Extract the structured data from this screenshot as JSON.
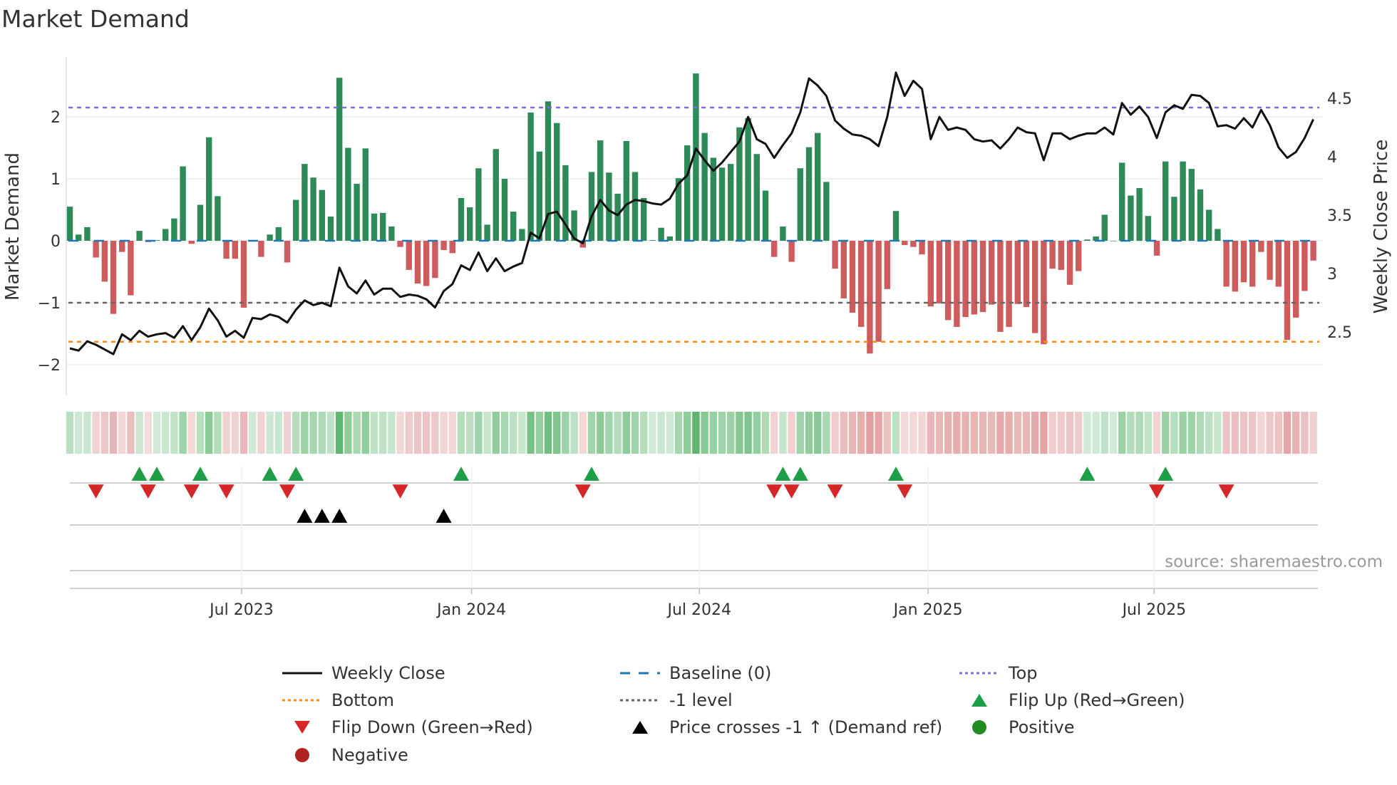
{
  "chart_data": {
    "type": "bar",
    "title": "Market Demand",
    "ylabel": "Market Demand",
    "y2label": "Weekly Close Price",
    "ylim": [
      -2.2,
      2.9
    ],
    "y2lim": [
      2.22,
      4.89
    ],
    "yticks": [
      {
        "v": 2,
        "label": "2"
      },
      {
        "v": 1,
        "label": "1"
      },
      {
        "v": 0,
        "label": "0"
      },
      {
        "v": -1,
        "label": "−1"
      },
      {
        "v": -2,
        "label": "−2"
      }
    ],
    "y2ticks": [
      {
        "v": 4.5,
        "label": "4.5"
      },
      {
        "v": 4,
        "label": "4"
      },
      {
        "v": 3.5,
        "label": "3.5"
      },
      {
        "v": 3,
        "label": "3"
      },
      {
        "v": 2.5,
        "label": "2.5"
      }
    ],
    "x_ticks": [
      {
        "label": "Jul 2023",
        "week": 19.75
      },
      {
        "label": "Jan 2024",
        "week": 46.2
      },
      {
        "label": "Jul 2024",
        "week": 72.4
      },
      {
        "label": "Jan 2025",
        "week": 98.7
      },
      {
        "label": "Jul 2025",
        "week": 124.7
      }
    ],
    "levels": {
      "top": 2.15,
      "baseline": 0,
      "minus_one": -1,
      "bottom": -1.63
    },
    "demand": [
      0.55,
      0.1,
      0.22,
      -0.27,
      -0.66,
      -1.18,
      -0.18,
      -0.88,
      0.16,
      -0.02,
      0.01,
      0.19,
      0.36,
      1.2,
      -0.05,
      0.58,
      1.67,
      0.72,
      -0.29,
      -0.29,
      -1.08,
      0,
      -0.26,
      0.1,
      0.22,
      -0.35,
      0.66,
      1.24,
      1.02,
      0.82,
      0.39,
      2.63,
      1.5,
      0.92,
      1.49,
      0.44,
      0.45,
      0.23,
      -0.1,
      -0.47,
      -0.69,
      -0.73,
      -0.6,
      -0.15,
      -0.2,
      0.69,
      0.54,
      1.17,
      0.26,
      1.48,
      1.0,
      0.47,
      0.19,
      2.07,
      1.44,
      2.25,
      1.9,
      1.22,
      0.49,
      -0.11,
      1.11,
      1.62,
      1.1,
      0.76,
      1.61,
      1.11,
      0.69,
      0.01,
      0.21,
      0.07,
      1.01,
      1.54,
      2.7,
      1.74,
      1.34,
      1.18,
      1.24,
      1.83,
      1.98,
      1.4,
      0.81,
      -0.26,
      0.23,
      -0.34,
      1.17,
      1.51,
      1.74,
      0.95,
      -0.45,
      -0.93,
      -1.16,
      -1.39,
      -1.82,
      -1.63,
      -0.78,
      0.48,
      -0.07,
      -0.1,
      -0.22,
      -1.06,
      -1.01,
      -1.28,
      -1.39,
      -1.23,
      -1.19,
      -1.15,
      -1.03,
      -1.47,
      -1.39,
      -1.02,
      -1.07,
      -1.49,
      -1.67,
      -0.45,
      -0.47,
      -0.71,
      -0.49,
      0.02,
      0.07,
      0.42,
      0,
      1.26,
      0.73,
      0.85,
      0.4,
      -0.24,
      1.28,
      0.71,
      1.28,
      1.16,
      0.83,
      0.5,
      0.19,
      -0.74,
      -0.82,
      -0.67,
      -0.74,
      -0.18,
      -0.63,
      -0.74,
      -1.6,
      -1.24,
      -0.81,
      -0.32
    ],
    "weekly_close": [
      2.36,
      2.34,
      2.42,
      2.39,
      2.35,
      2.31,
      2.48,
      2.43,
      2.51,
      2.46,
      2.48,
      2.49,
      2.45,
      2.55,
      2.43,
      2.54,
      2.7,
      2.6,
      2.46,
      2.51,
      2.45,
      2.62,
      2.61,
      2.65,
      2.63,
      2.58,
      2.69,
      2.77,
      2.73,
      2.75,
      2.72,
      3.05,
      2.89,
      2.83,
      2.94,
      2.82,
      2.87,
      2.87,
      2.8,
      2.82,
      2.81,
      2.78,
      2.71,
      2.85,
      2.91,
      3.07,
      3.03,
      3.18,
      3.02,
      3.13,
      3.02,
      3.06,
      3.09,
      3.35,
      3.3,
      3.51,
      3.53,
      3.42,
      3.3,
      3.26,
      3.49,
      3.63,
      3.54,
      3.5,
      3.59,
      3.63,
      3.62,
      3.6,
      3.59,
      3.64,
      3.77,
      3.84,
      4.07,
      3.97,
      3.88,
      3.95,
      4.04,
      4.13,
      4.34,
      4.15,
      4.11,
      3.99,
      4.1,
      4.2,
      4.38,
      4.67,
      4.61,
      4.52,
      4.31,
      4.24,
      4.19,
      4.18,
      4.15,
      4.09,
      4.34,
      4.72,
      4.52,
      4.65,
      4.58,
      4.15,
      4.34,
      4.23,
      4.25,
      4.23,
      4.15,
      4.13,
      4.14,
      4.07,
      4.15,
      4.25,
      4.21,
      4.2,
      3.97,
      4.2,
      4.2,
      4.15,
      4.18,
      4.2,
      4.2,
      4.25,
      4.19,
      4.46,
      4.36,
      4.43,
      4.34,
      4.16,
      4.38,
      4.44,
      4.41,
      4.53,
      4.52,
      4.46,
      4.26,
      4.27,
      4.24,
      4.33,
      4.25,
      4.4,
      4.27,
      4.08,
      3.99,
      4.04,
      4.16,
      4.32
    ],
    "flip_up_weeks": [
      8,
      10,
      15,
      23,
      26,
      45,
      60,
      82,
      84,
      95,
      117,
      126
    ],
    "flip_down_weeks": [
      3,
      9,
      14,
      18,
      25,
      38,
      59,
      81,
      83,
      88,
      96,
      125,
      133
    ],
    "price_cross_weeks": [
      27,
      29,
      31,
      43
    ],
    "colors": {
      "positive": "#2e8b57",
      "negative": "#cd5c5c",
      "line": "#111111",
      "baseline": "#1f77b4",
      "top": "#7b6fd6",
      "bottom": "#ff8c1a",
      "minus_one": "#666666",
      "flip_up": "#1f9e48",
      "flip_down": "#d62728",
      "cross": "#000000",
      "pos_dot": "#228b22",
      "neg_dot": "#b22222"
    },
    "legend": [
      {
        "label": "Weekly Close",
        "kind": "line"
      },
      {
        "label": "Baseline (0)",
        "kind": "baseline"
      },
      {
        "label": "Top",
        "kind": "top"
      },
      {
        "label": "Bottom",
        "kind": "bottom"
      },
      {
        "label": "-1 level",
        "kind": "minus_one"
      },
      {
        "label": "Flip Up (Red→Green)",
        "kind": "flip_up"
      },
      {
        "label": "Flip Down (Green→Red)",
        "kind": "flip_down"
      },
      {
        "label": "Price crosses -1 ↑ (Demand ref)",
        "kind": "cross"
      },
      {
        "label": "Positive",
        "kind": "pos_dot"
      },
      {
        "label": "Negative",
        "kind": "neg_dot"
      }
    ],
    "legend_placement": "bottom",
    "source": "source: sharemaestro.com"
  }
}
